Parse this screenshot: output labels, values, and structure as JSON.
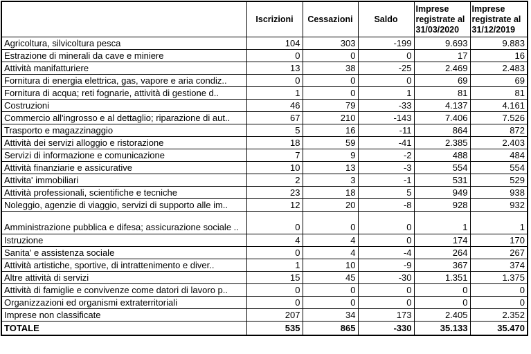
{
  "table": {
    "columns": [
      "",
      "Iscrizioni",
      "Cessazioni",
      "Saldo",
      "Imprese registrate al 31/03/2020",
      "Imprese registrate al 31/12/2019"
    ],
    "rows": [
      {
        "label": "Agricoltura, silvicoltura pesca",
        "values": [
          "104",
          "303",
          "-199",
          "9.693",
          "9.883"
        ],
        "tall": false,
        "total": false
      },
      {
        "label": "Estrazione di minerali da cave e miniere",
        "values": [
          "0",
          "0",
          "0",
          "17",
          "16"
        ],
        "tall": false,
        "total": false
      },
      {
        "label": "Attività manifatturiere",
        "values": [
          "13",
          "38",
          "-25",
          "2.469",
          "2.483"
        ],
        "tall": false,
        "total": false
      },
      {
        "label": "Fornitura di energia elettrica, gas, vapore e aria condiz..",
        "values": [
          "0",
          "0",
          "0",
          "69",
          "69"
        ],
        "tall": false,
        "total": false
      },
      {
        "label": "Fornitura di acqua; reti fognarie, attività di gestione d..",
        "values": [
          "1",
          "0",
          "1",
          "81",
          "81"
        ],
        "tall": false,
        "total": false
      },
      {
        "label": "Costruzioni",
        "values": [
          "46",
          "79",
          "-33",
          "4.137",
          "4.161"
        ],
        "tall": false,
        "total": false
      },
      {
        "label": "Commercio all'ingrosso e al dettaglio; riparazione di aut..",
        "values": [
          "67",
          "210",
          "-143",
          "7.406",
          "7.526"
        ],
        "tall": false,
        "total": false
      },
      {
        "label": "Trasporto e magazzinaggio",
        "values": [
          "5",
          "16",
          "-11",
          "864",
          "872"
        ],
        "tall": false,
        "total": false
      },
      {
        "label": "Attività dei servizi alloggio e ristorazione",
        "values": [
          "18",
          "59",
          "-41",
          "2.385",
          "2.403"
        ],
        "tall": false,
        "total": false
      },
      {
        "label": "Servizi di informazione e comunicazione",
        "values": [
          "7",
          "9",
          "-2",
          "488",
          "484"
        ],
        "tall": false,
        "total": false
      },
      {
        "label": "Attività finanziarie e assicurative",
        "values": [
          "10",
          "13",
          "-3",
          "554",
          "554"
        ],
        "tall": false,
        "total": false
      },
      {
        "label": "Attivita' immobiliari",
        "values": [
          "2",
          "3",
          "-1",
          "531",
          "529"
        ],
        "tall": false,
        "total": false
      },
      {
        "label": "Attività professionali, scientifiche e tecniche",
        "values": [
          "23",
          "18",
          "5",
          "949",
          "938"
        ],
        "tall": false,
        "total": false
      },
      {
        "label": "Noleggio, agenzie di viaggio, servizi di supporto alle im..",
        "values": [
          "12",
          "20",
          "-8",
          "928",
          "932"
        ],
        "tall": false,
        "total": false
      },
      {
        "label": "Amministrazione pubblica e difesa; assicurazione sociale ..",
        "values": [
          "0",
          "0",
          "0",
          "1",
          "1"
        ],
        "tall": true,
        "total": false
      },
      {
        "label": "Istruzione",
        "values": [
          "4",
          "4",
          "0",
          "174",
          "170"
        ],
        "tall": false,
        "total": false
      },
      {
        "label": "Sanita' e assistenza sociale",
        "values": [
          "0",
          "4",
          "-4",
          "264",
          "267"
        ],
        "tall": false,
        "total": false
      },
      {
        "label": "Attività artistiche, sportive, di intrattenimento e diver..",
        "values": [
          "1",
          "10",
          "-9",
          "367",
          "374"
        ],
        "tall": false,
        "total": false
      },
      {
        "label": "Altre attività di servizi",
        "values": [
          "15",
          "45",
          "-30",
          "1.351",
          "1.375"
        ],
        "tall": false,
        "total": false
      },
      {
        "label": "Attività di famiglie e convivenze come datori di lavoro p..",
        "values": [
          "0",
          "0",
          "0",
          "0",
          "0"
        ],
        "tall": false,
        "total": false
      },
      {
        "label": "Organizzazioni ed organismi extraterritoriali",
        "values": [
          "0",
          "0",
          "0",
          "0",
          "0"
        ],
        "tall": false,
        "total": false
      },
      {
        "label": "Imprese non classificate",
        "values": [
          "207",
          "34",
          "173",
          "2.405",
          "2.352"
        ],
        "tall": false,
        "total": false
      },
      {
        "label": "TOTALE",
        "values": [
          "535",
          "865",
          "-330",
          "35.133",
          "35.470"
        ],
        "tall": false,
        "total": true
      }
    ]
  }
}
